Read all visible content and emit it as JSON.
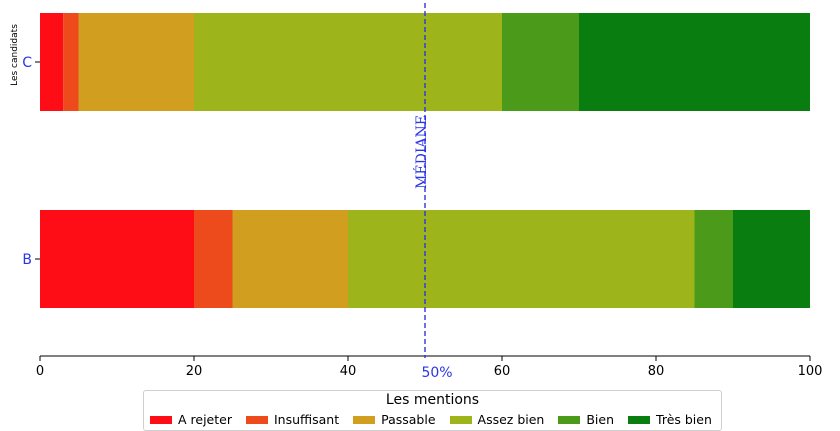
{
  "chart_data": {
    "type": "bar",
    "orientation": "horizontal",
    "stacked": true,
    "ylabel": "Les candidats",
    "xlim": [
      0,
      100
    ],
    "x_ticks": [
      "0",
      "20",
      "40",
      "60",
      "80",
      "100"
    ],
    "categories": [
      "B",
      "C"
    ],
    "series": [
      {
        "name": "A rejeter",
        "color": "#ff0d17",
        "values": [
          20,
          3
        ]
      },
      {
        "name": "Insuffisant",
        "color": "#ee4b1c",
        "values": [
          5,
          2
        ]
      },
      {
        "name": "Passable",
        "color": "#d29e1f",
        "values": [
          15,
          15
        ]
      },
      {
        "name": "Assez bien",
        "color": "#9db51a",
        "values": [
          45,
          40
        ]
      },
      {
        "name": "Bien",
        "color": "#4b9a1a",
        "values": [
          5,
          10
        ]
      },
      {
        "name": "Très bien",
        "color": "#0a7d10",
        "values": [
          10,
          30
        ]
      }
    ],
    "median_line": {
      "value": 50,
      "label": "MÉDIANE",
      "bottom_label": "50%",
      "color": "#2b35e6"
    },
    "legend": {
      "title": "Les mentions",
      "placement": "bottom-center"
    }
  }
}
